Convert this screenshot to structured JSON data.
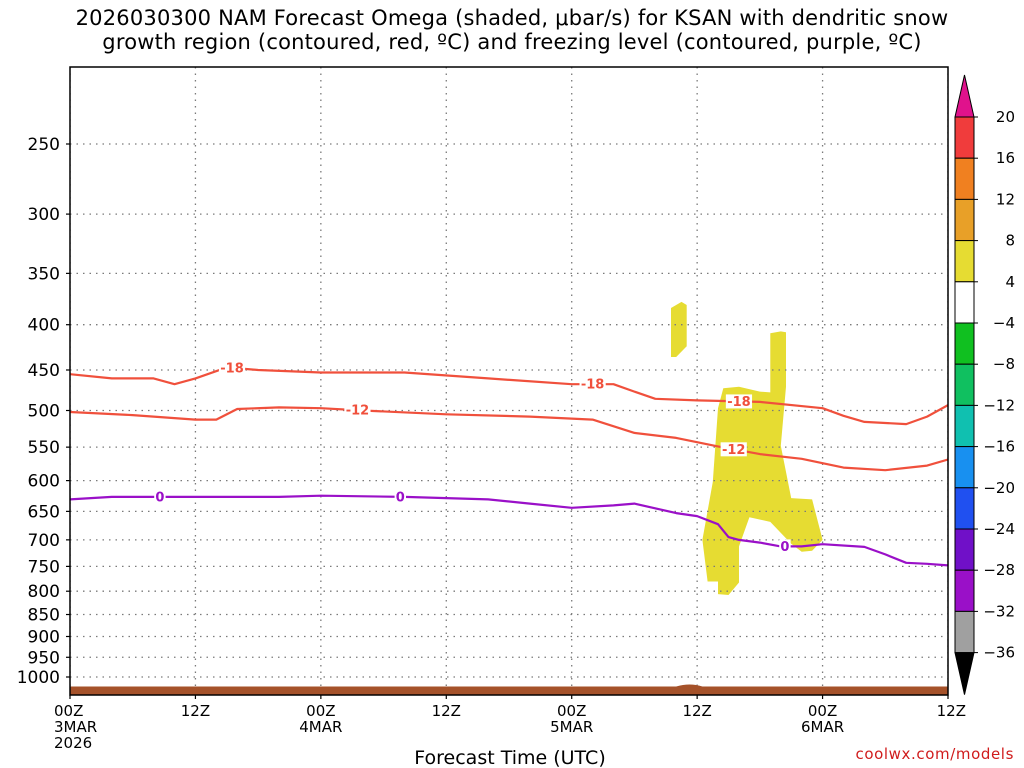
{
  "title": {
    "line1": "2026030300 NAM Forecast Omega (shaded, μbar/s) for KSAN with dendritic snow",
    "line2": "growth region (contoured, red, ºC) and freezing level (contoured, purple, ºC)"
  },
  "watermark": "coolwx.com/models",
  "chart_data": {
    "type": "time-height cross-section",
    "xlabel": "Forecast Time (UTC)",
    "ylabel": "",
    "x_unit": "hours since 2026-03-03 00Z",
    "xlim": [
      0,
      84
    ],
    "x_ticks": [
      {
        "h": 0,
        "l1": "00Z",
        "l2": "3MAR",
        "l3": "2026"
      },
      {
        "h": 12,
        "l1": "12Z",
        "l2": "",
        "l3": ""
      },
      {
        "h": 24,
        "l1": "00Z",
        "l2": "4MAR",
        "l3": ""
      },
      {
        "h": 36,
        "l1": "12Z",
        "l2": "",
        "l3": ""
      },
      {
        "h": 48,
        "l1": "00Z",
        "l2": "5MAR",
        "l3": ""
      },
      {
        "h": 60,
        "l1": "12Z",
        "l2": "",
        "l3": ""
      },
      {
        "h": 72,
        "l1": "00Z",
        "l2": "6MAR",
        "l3": ""
      },
      {
        "h": 84,
        "l1": "12Z",
        "l2": "",
        "l3": ""
      }
    ],
    "y_unit": "hPa",
    "ylim": [
      1050,
      200
    ],
    "y_ticks": [
      250,
      300,
      350,
      400,
      450,
      500,
      550,
      600,
      650,
      700,
      750,
      800,
      850,
      900,
      950,
      1000
    ],
    "grid": true,
    "series": [
      {
        "name": "-18 C isotherm",
        "color": "#f0503c",
        "label": "-18",
        "label_at": [
          15.5,
          50,
          64
        ],
        "points": [
          [
            0,
            455
          ],
          [
            4,
            460
          ],
          [
            8,
            460
          ],
          [
            10,
            467
          ],
          [
            12,
            460
          ],
          [
            15,
            447
          ],
          [
            18,
            450
          ],
          [
            24,
            453
          ],
          [
            32,
            453
          ],
          [
            40,
            460
          ],
          [
            48,
            467
          ],
          [
            52,
            467
          ],
          [
            54,
            476
          ],
          [
            56,
            485
          ],
          [
            60,
            487
          ],
          [
            66,
            489
          ],
          [
            72,
            497
          ],
          [
            74,
            507
          ],
          [
            76,
            515
          ],
          [
            80,
            518
          ],
          [
            82,
            508
          ],
          [
            84,
            493
          ]
        ]
      },
      {
        "name": "-12 C isotherm",
        "color": "#f0503c",
        "label": "-12",
        "label_at": [
          27.5,
          63.5
        ],
        "points": [
          [
            0,
            502
          ],
          [
            6,
            506
          ],
          [
            12,
            512
          ],
          [
            14,
            512
          ],
          [
            16,
            498
          ],
          [
            20,
            496
          ],
          [
            24,
            497
          ],
          [
            28,
            500
          ],
          [
            36,
            505
          ],
          [
            44,
            508
          ],
          [
            50,
            512
          ],
          [
            54,
            530
          ],
          [
            58,
            537
          ],
          [
            60,
            543
          ],
          [
            62,
            549
          ],
          [
            66,
            560
          ],
          [
            70,
            567
          ],
          [
            74,
            580
          ],
          [
            78,
            584
          ],
          [
            82,
            577
          ],
          [
            84,
            568
          ]
        ]
      },
      {
        "name": "0 C freezing level",
        "color": "#9a10c8",
        "label": "0",
        "label_at": [
          8.6,
          31.6,
          68.4
        ],
        "points": [
          [
            0,
            630
          ],
          [
            4,
            626
          ],
          [
            8,
            626
          ],
          [
            12,
            626
          ],
          [
            20,
            626
          ],
          [
            24,
            624
          ],
          [
            32,
            626
          ],
          [
            40,
            630
          ],
          [
            44,
            637
          ],
          [
            48,
            644
          ],
          [
            52,
            640
          ],
          [
            54,
            637
          ],
          [
            58,
            653
          ],
          [
            60,
            658
          ],
          [
            62,
            672
          ],
          [
            63,
            695
          ],
          [
            64,
            700
          ],
          [
            66,
            705
          ],
          [
            68,
            712
          ],
          [
            70,
            712
          ],
          [
            72,
            708
          ],
          [
            76,
            713
          ],
          [
            78,
            727
          ],
          [
            80,
            743
          ],
          [
            82,
            745
          ],
          [
            84,
            748
          ]
        ]
      }
    ],
    "shaded_regions": [
      {
        "value": "4 to 8",
        "color": "#e6dc32",
        "outline": [
          [
            57.5,
            383
          ],
          [
            58.5,
            377
          ],
          [
            59,
            380
          ],
          [
            59,
            423
          ],
          [
            58,
            435
          ],
          [
            57.5,
            435
          ]
        ]
      },
      {
        "value": "4 to 8",
        "color": "#e6dc32",
        "outline": [
          [
            61,
            780
          ],
          [
            60.5,
            700
          ],
          [
            61.5,
            602
          ],
          [
            62,
            497
          ],
          [
            62.5,
            472
          ],
          [
            64,
            470
          ],
          [
            66,
            476
          ],
          [
            67,
            477
          ],
          [
            67,
            409
          ],
          [
            68,
            407
          ],
          [
            68.5,
            408
          ],
          [
            68.5,
            470
          ],
          [
            68,
            548
          ],
          [
            69,
            628
          ],
          [
            71,
            630
          ],
          [
            72,
            700
          ],
          [
            71,
            720
          ],
          [
            70,
            722
          ],
          [
            69,
            707
          ],
          [
            67,
            668
          ],
          [
            65,
            660
          ],
          [
            64,
            712
          ],
          [
            64,
            782
          ],
          [
            63,
            808
          ],
          [
            62,
            806
          ],
          [
            62,
            780
          ]
        ]
      }
    ],
    "terrain": {
      "color": "#a5522a",
      "from_hPa": 1025
    },
    "colorbar": {
      "labels": [
        20,
        16,
        12,
        8,
        4,
        -4,
        -8,
        -12,
        -16,
        -20,
        -24,
        -28,
        -32,
        -36
      ],
      "colors": [
        "#f03c3c",
        "#f08020",
        "#e8a028",
        "#e6dc32",
        "#ffffff",
        "#10c020",
        "#10c060",
        "#10c0b0",
        "#1890f0",
        "#2050f0",
        "#7010c8",
        "#9a10c8",
        "#a0a0a0"
      ],
      "top_color": "#e0128c",
      "bottom_color": "#000000"
    }
  }
}
